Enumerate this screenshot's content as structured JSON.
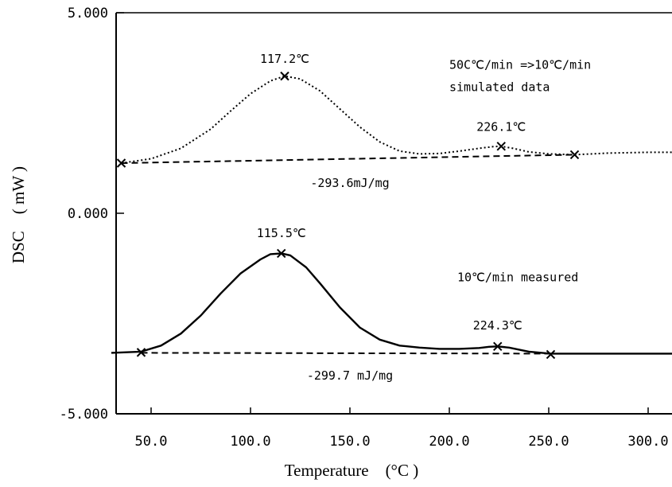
{
  "chart_data": {
    "type": "line",
    "xlabel": "Temperature　(°C )",
    "ylabel": "DSC　( mW )",
    "xlim": [
      30,
      318
    ],
    "ylim": [
      -5,
      5
    ],
    "x_ticks": [
      {
        "value": 50,
        "label": "50.0"
      },
      {
        "value": 100,
        "label": "100.0"
      },
      {
        "value": 150,
        "label": "150.0"
      },
      {
        "value": 200,
        "label": "200.0"
      },
      {
        "value": 250,
        "label": "250.0"
      },
      {
        "value": 300,
        "label": "300.0"
      }
    ],
    "y_ticks": [
      {
        "value": 5,
        "label": "5.000"
      },
      {
        "value": 0,
        "label": "0.000"
      },
      {
        "value": -5,
        "label": "-5.000"
      }
    ],
    "grid": false,
    "series": [
      {
        "name": "",
        "style": "dotted",
        "x": [
          35,
          50,
          65,
          80,
          90,
          100,
          110,
          117.2,
          125,
          135,
          145,
          155,
          165,
          175,
          185,
          195,
          205,
          215,
          222,
          226.1,
          232,
          240,
          250,
          263,
          280,
          300,
          318
        ],
        "y": [
          1.25,
          1.36,
          1.62,
          2.1,
          2.55,
          2.98,
          3.3,
          3.42,
          3.35,
          3.05,
          2.6,
          2.15,
          1.78,
          1.55,
          1.48,
          1.49,
          1.55,
          1.62,
          1.66,
          1.67,
          1.62,
          1.53,
          1.48,
          1.46,
          1.5,
          1.52,
          1.52
        ]
      },
      {
        "name": "",
        "style": "dashed",
        "x": [
          35,
          263
        ],
        "y": [
          1.25,
          1.46
        ]
      },
      {
        "name": "",
        "style": "solid",
        "x": [
          30,
          45,
          55,
          65,
          75,
          85,
          95,
          105,
          110,
          115.5,
          120,
          128,
          135,
          145,
          155,
          165,
          175,
          185,
          195,
          205,
          215,
          220,
          224.3,
          230,
          240,
          251,
          270,
          300,
          318
        ],
        "y": [
          -3.48,
          -3.45,
          -3.3,
          -3.0,
          -2.55,
          -2.0,
          -1.5,
          -1.15,
          -1.02,
          -1.0,
          -1.05,
          -1.35,
          -1.75,
          -2.35,
          -2.85,
          -3.15,
          -3.3,
          -3.35,
          -3.38,
          -3.38,
          -3.36,
          -3.33,
          -3.32,
          -3.35,
          -3.45,
          -3.5,
          -3.5,
          -3.5,
          -3.5
        ]
      },
      {
        "name": "",
        "style": "dashed",
        "x": [
          45,
          251
        ],
        "y": [
          -3.48,
          -3.5
        ]
      }
    ],
    "markers": [
      {
        "x": 35,
        "y": 1.25
      },
      {
        "x": 117.2,
        "y": 3.42
      },
      {
        "x": 226.1,
        "y": 1.67
      },
      {
        "x": 263,
        "y": 1.46
      },
      {
        "x": 45,
        "y": -3.47
      },
      {
        "x": 115.5,
        "y": -1.0
      },
      {
        "x": 224.3,
        "y": -3.32
      },
      {
        "x": 251,
        "y": -3.52
      }
    ],
    "annotations": [
      {
        "text": "117.2℃",
        "x": 117.2,
        "y": 3.75
      },
      {
        "text": "50C℃/min =>10℃/min",
        "x": 200,
        "y": 3.6
      },
      {
        "text": "simulated data",
        "x": 200,
        "y": 3.05
      },
      {
        "text": "226.1℃",
        "x": 226.1,
        "y": 2.05
      },
      {
        "text": "-293.6mJ/mg",
        "x": 150,
        "y": 0.65
      },
      {
        "text": "115.5℃",
        "x": 115.5,
        "y": -0.6
      },
      {
        "text": "10℃/min measured",
        "x": 204,
        "y": -1.7
      },
      {
        "text": "224.3℃",
        "x": 224.3,
        "y": -2.9
      },
      {
        "text": "-299.7 mJ/mg",
        "x": 150,
        "y": -4.15
      }
    ]
  }
}
